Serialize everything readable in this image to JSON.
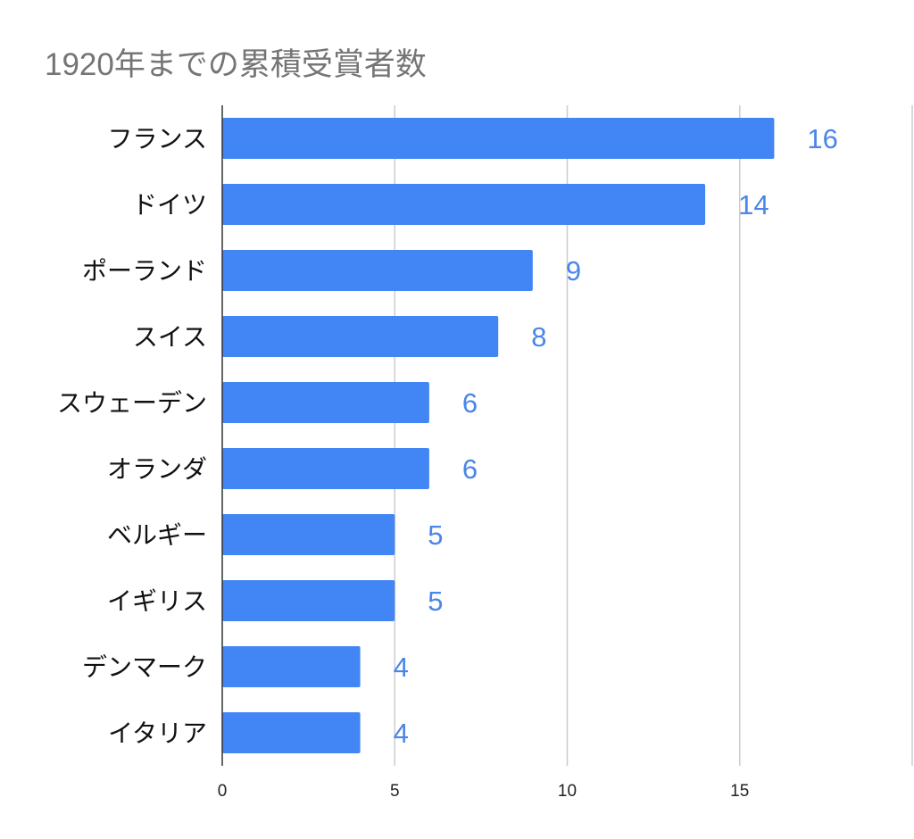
{
  "chart_data": {
    "type": "bar",
    "orientation": "horizontal",
    "title": "1920年までの累積受賞者数",
    "categories": [
      "フランス",
      "ドイツ",
      "ポーランド",
      "スイス",
      "スウェーデン",
      "オランダ",
      "ベルギー",
      "イギリス",
      "デンマーク",
      "イタリア"
    ],
    "values": [
      16,
      14,
      9,
      8,
      6,
      6,
      5,
      5,
      4,
      4
    ],
    "xlim": [
      0,
      20
    ],
    "xticks": [
      0,
      5,
      10,
      15
    ],
    "grid": true,
    "data_labels": true,
    "colors": {
      "bar": "#4285f4",
      "data_label": "#4a86e8",
      "title": "#757575",
      "grid": "#cccccc"
    }
  }
}
